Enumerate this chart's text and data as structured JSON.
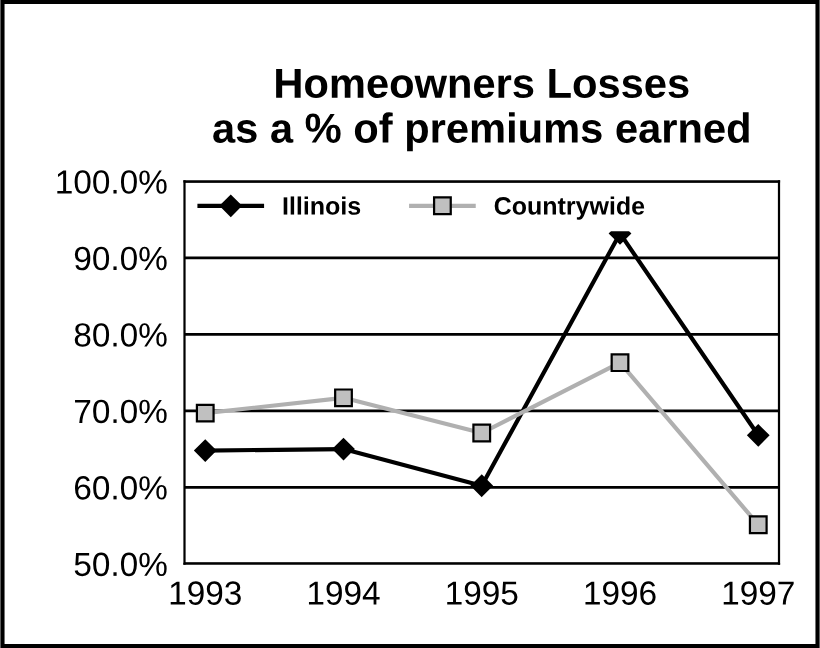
{
  "chart_data": {
    "type": "line",
    "title": "Homeowners Losses\nas a % of premiums earned",
    "categories": [
      "1993",
      "1994",
      "1995",
      "1996",
      "1997"
    ],
    "series": [
      {
        "name": "Illinois",
        "color": "#000000",
        "marker": "diamond",
        "values": [
          64.8,
          65.0,
          60.2,
          93.2,
          66.8
        ]
      },
      {
        "name": "Countrywide",
        "color": "#b0b0b0",
        "marker": "square",
        "values": [
          69.7,
          71.7,
          67.1,
          76.3,
          55.1
        ]
      }
    ],
    "ylim": [
      50,
      100
    ],
    "yticks": [
      {
        "value": 50,
        "label": "50.0%"
      },
      {
        "value": 60,
        "label": "60.0%"
      },
      {
        "value": 70,
        "label": "70.0%"
      },
      {
        "value": 80,
        "label": "80.0%"
      },
      {
        "value": 90,
        "label": "90.0%"
      },
      {
        "value": 100,
        "label": "100.0%"
      }
    ],
    "grid": "y",
    "legend": "top left"
  }
}
